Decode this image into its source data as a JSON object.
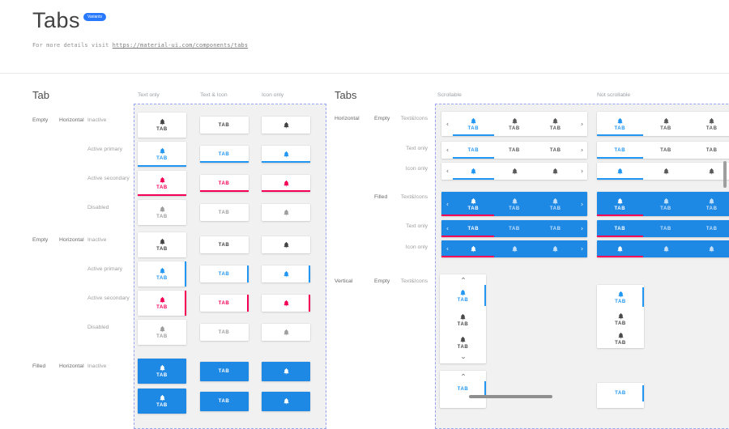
{
  "header": {
    "title": "Tabs",
    "badge": "Variants",
    "subtitle_prefix": "For more details visit ",
    "link_text": "https://material-ui.com/components/tabs"
  },
  "tab_label": "TAB",
  "left": {
    "title": "Tab",
    "columns": [
      "Text only",
      "Text & Icon",
      "Icon only"
    ],
    "groups": [
      {
        "fill": "Empty",
        "orientation": "Horizontal",
        "states": [
          "Inactive",
          "Active primary",
          "Active secondary",
          "Disabled"
        ]
      },
      {
        "fill": "Empty",
        "orientation": "Horizontal",
        "states": [
          "Inactive",
          "Active primary",
          "Active secondary",
          "Disabled"
        ]
      },
      {
        "fill": "Filled",
        "orientation": "Horizontal",
        "states": [
          "Inactive"
        ]
      }
    ]
  },
  "right": {
    "title": "Tabs",
    "columns": [
      "Scrollable",
      "Not scrollable"
    ],
    "groups": [
      {
        "orientation": "Horizontal",
        "fill": "Empty",
        "variants": [
          "Text&Icons",
          "Text only",
          "Icon only"
        ]
      },
      {
        "fill": "Filled",
        "variants": [
          "Text&Icons",
          "Text only",
          "Icon only"
        ]
      },
      {
        "orientation": "Vertical",
        "fill": "Empty",
        "variants": [
          "Text&Icons"
        ]
      }
    ]
  },
  "colors": {
    "primary": "#2196F3",
    "secondary": "#F50057",
    "filled_bg": "#1E88E5",
    "badge_bg": "#2979FF",
    "inactive": "#424242",
    "disabled": "#9E9E9E"
  }
}
